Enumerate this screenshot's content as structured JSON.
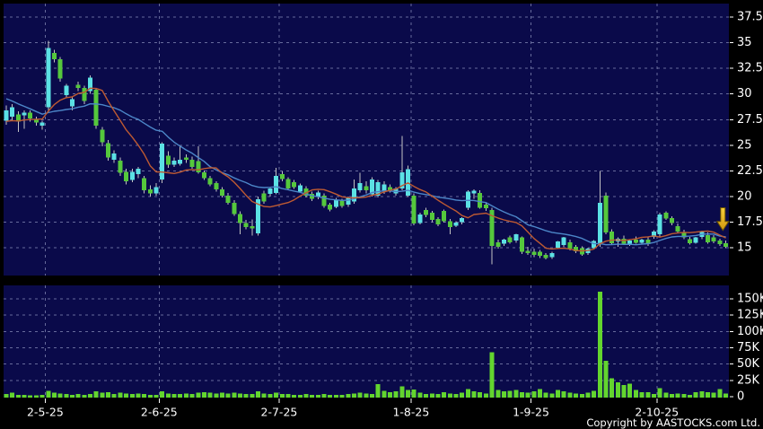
{
  "copyright": "Copyright by AASTOCKS.com Ltd.",
  "chart_data": {
    "type": "candlestick",
    "title": "",
    "legend_position": "none",
    "grid": true,
    "panels": [
      "price",
      "volume"
    ],
    "price_axis": {
      "side": "right",
      "min": 15,
      "max": 37.5,
      "step": 2.5,
      "tick_values": [
        37.5,
        35,
        32.5,
        30,
        27.5,
        25,
        22.5,
        20,
        17.5,
        15
      ],
      "tick_labels": [
        "37.5",
        "35",
        "32.5",
        "30",
        "27.5",
        "25",
        "22.5",
        "20",
        "17.5",
        "15"
      ]
    },
    "volume_axis": {
      "side": "right",
      "min": 0,
      "max": 150,
      "unit": "K",
      "tick_values": [
        150,
        125,
        100,
        75,
        50,
        25,
        0
      ],
      "tick_labels": [
        "150K",
        "125K",
        "100K",
        "75K",
        "50K",
        "25K",
        "0"
      ]
    },
    "months": [
      {
        "label": "2-5-25",
        "start_index": 7
      },
      {
        "label": "2-6-25",
        "start_index": 26
      },
      {
        "label": "2-7-25",
        "start_index": 46
      },
      {
        "label": "1-8-25",
        "start_index": 68
      },
      {
        "label": "1-9-25",
        "start_index": 88
      },
      {
        "label": "2-10-25",
        "start_index": 109
      }
    ],
    "ma": {
      "short_period": 10,
      "long_period": 20
    },
    "pre_closes": [
      33.5,
      33.2,
      33.0,
      32.8,
      32.6,
      32.4,
      32.2,
      31.6,
      30.8,
      30.0,
      28.8,
      28.0,
      27.6,
      27.3,
      27.1,
      27.0,
      26.9,
      26.9,
      27.0,
      27.1
    ],
    "candles_format": [
      "open",
      "high",
      "low",
      "close",
      "volume_K"
    ],
    "candles": [
      [
        27.4,
        28.9,
        27.0,
        28.4,
        4
      ],
      [
        27.8,
        29.0,
        27.4,
        28.7,
        6
      ],
      [
        28.0,
        28.3,
        26.3,
        27.3,
        3
      ],
      [
        27.9,
        28.4,
        26.6,
        28.2,
        3
      ],
      [
        28.2,
        28.4,
        27.3,
        27.6,
        2
      ],
      [
        27.5,
        27.8,
        26.9,
        27.2,
        2
      ],
      [
        26.9,
        27.4,
        26.5,
        27.2,
        3
      ],
      [
        28.7,
        35.2,
        28.2,
        34.5,
        9
      ],
      [
        34.0,
        34.3,
        33.1,
        33.4,
        6
      ],
      [
        33.4,
        33.6,
        31.2,
        31.5,
        5
      ],
      [
        29.9,
        31.0,
        29.6,
        30.8,
        4
      ],
      [
        28.8,
        29.7,
        28.4,
        29.5,
        3
      ],
      [
        30.9,
        31.2,
        30.3,
        30.6,
        4
      ],
      [
        30.6,
        30.8,
        29.0,
        29.3,
        3
      ],
      [
        30.3,
        31.8,
        30.0,
        31.6,
        4
      ],
      [
        30.4,
        30.6,
        26.6,
        26.9,
        8
      ],
      [
        26.5,
        26.8,
        24.9,
        25.3,
        6
      ],
      [
        25.2,
        25.5,
        23.5,
        23.8,
        7
      ],
      [
        23.6,
        24.5,
        23.3,
        24.2,
        4
      ],
      [
        23.5,
        23.8,
        22.0,
        22.3,
        6
      ],
      [
        22.4,
        22.7,
        21.2,
        21.5,
        5
      ],
      [
        21.6,
        22.7,
        21.4,
        22.4,
        4
      ],
      [
        22.2,
        22.9,
        21.8,
        22.7,
        5
      ],
      [
        21.8,
        22.0,
        20.3,
        20.6,
        4
      ],
      [
        20.7,
        21.1,
        20.0,
        20.3,
        3
      ],
      [
        20.3,
        21.3,
        20.1,
        20.9,
        3
      ],
      [
        21.65,
        25.3,
        21.3,
        25.15,
        8
      ],
      [
        24.0,
        24.4,
        22.8,
        23.1,
        5
      ],
      [
        23.1,
        23.8,
        22.9,
        23.5,
        4
      ],
      [
        23.2,
        25.0,
        23.0,
        23.6,
        4
      ],
      [
        23.8,
        24.1,
        23.3,
        23.6,
        5
      ],
      [
        23.6,
        23.9,
        22.7,
        22.9,
        4
      ],
      [
        23.45,
        24.9,
        22.25,
        22.35,
        6
      ],
      [
        22.35,
        22.55,
        21.6,
        21.8,
        7
      ],
      [
        21.8,
        22.0,
        21.0,
        21.2,
        6
      ],
      [
        21.3,
        21.5,
        20.5,
        20.7,
        5
      ],
      [
        20.7,
        20.9,
        19.9,
        20.1,
        6
      ],
      [
        20.1,
        20.35,
        19.2,
        19.4,
        5
      ],
      [
        19.4,
        19.65,
        18.1,
        18.3,
        6
      ],
      [
        18.3,
        18.55,
        16.3,
        17.4,
        5
      ],
      [
        17.4,
        17.7,
        16.8,
        17.0,
        4
      ],
      [
        17.1,
        17.75,
        16.2,
        16.9,
        4
      ],
      [
        16.4,
        20.0,
        16.2,
        19.75,
        8
      ],
      [
        20.3,
        20.55,
        19.3,
        19.5,
        5
      ],
      [
        20.25,
        20.85,
        20.0,
        20.8,
        4
      ],
      [
        20.35,
        22.8,
        20.2,
        22.0,
        6
      ],
      [
        22.2,
        22.45,
        21.5,
        21.7,
        4
      ],
      [
        21.7,
        21.9,
        20.6,
        20.8,
        4
      ],
      [
        21.4,
        21.6,
        20.75,
        20.9,
        3
      ],
      [
        20.5,
        21.25,
        20.35,
        21.1,
        3
      ],
      [
        20.8,
        21.0,
        19.9,
        20.1,
        4
      ],
      [
        20.25,
        20.5,
        19.55,
        19.8,
        3
      ],
      [
        19.95,
        20.55,
        19.75,
        20.4,
        3
      ],
      [
        20.1,
        20.3,
        18.9,
        19.1,
        4
      ],
      [
        19.2,
        19.4,
        18.55,
        18.75,
        3
      ],
      [
        19.0,
        19.85,
        18.85,
        19.7,
        3
      ],
      [
        19.6,
        19.8,
        18.9,
        19.1,
        3
      ],
      [
        19.2,
        20.0,
        19.0,
        19.9,
        4
      ],
      [
        19.5,
        21.65,
        19.3,
        20.8,
        5
      ],
      [
        20.6,
        22.3,
        20.4,
        21.3,
        6
      ],
      [
        21.0,
        21.5,
        20.3,
        20.6,
        5
      ],
      [
        20.2,
        21.9,
        20.0,
        21.65,
        4
      ],
      [
        20.1,
        21.6,
        19.9,
        21.4,
        19
      ],
      [
        20.5,
        21.5,
        20.25,
        21.2,
        9
      ],
      [
        20.9,
        21.2,
        20.4,
        20.55,
        7
      ],
      [
        20.3,
        20.9,
        20.1,
        20.8,
        8
      ],
      [
        20.8,
        25.9,
        20.6,
        22.35,
        16
      ],
      [
        20.1,
        23.0,
        19.95,
        22.65,
        10
      ],
      [
        20.1,
        20.3,
        17.2,
        17.35,
        11
      ],
      [
        17.4,
        18.4,
        17.3,
        18.25,
        6
      ],
      [
        18.7,
        18.9,
        18.0,
        18.2,
        4
      ],
      [
        18.4,
        18.6,
        17.5,
        17.7,
        5
      ],
      [
        17.8,
        18.0,
        17.1,
        17.3,
        4
      ],
      [
        18.6,
        18.75,
        17.45,
        17.6,
        7
      ],
      [
        17.6,
        17.8,
        16.3,
        17.0,
        5
      ],
      [
        17.15,
        17.6,
        17.0,
        17.45,
        4
      ],
      [
        17.5,
        18.0,
        17.3,
        17.9,
        6
      ],
      [
        18.9,
        20.6,
        18.7,
        20.5,
        12
      ],
      [
        20.3,
        20.7,
        19.8,
        20.55,
        8
      ],
      [
        20.35,
        20.6,
        18.8,
        18.9,
        7
      ],
      [
        19.2,
        19.4,
        18.6,
        18.85,
        5
      ],
      [
        18.7,
        18.9,
        13.4,
        15.2,
        68
      ],
      [
        15.55,
        15.8,
        14.9,
        15.1,
        10
      ],
      [
        15.4,
        15.9,
        15.2,
        15.8,
        8
      ],
      [
        16.0,
        16.2,
        15.4,
        15.55,
        9
      ],
      [
        15.7,
        16.35,
        15.5,
        16.3,
        10
      ],
      [
        16.0,
        16.1,
        14.4,
        14.6,
        7
      ],
      [
        14.7,
        15.1,
        14.3,
        14.5,
        6
      ],
      [
        14.6,
        14.9,
        14.1,
        14.3,
        8
      ],
      [
        14.6,
        14.8,
        14.0,
        14.2,
        12
      ],
      [
        14.3,
        14.5,
        13.85,
        14.0,
        6
      ],
      [
        14.1,
        14.6,
        13.9,
        14.5,
        5
      ],
      [
        15.0,
        15.65,
        14.9,
        15.6,
        10
      ],
      [
        15.25,
        16.05,
        15.1,
        16.0,
        8
      ],
      [
        15.55,
        15.8,
        14.75,
        14.9,
        6
      ],
      [
        15.1,
        15.25,
        14.5,
        14.65,
        5
      ],
      [
        14.95,
        15.15,
        14.2,
        14.35,
        4
      ],
      [
        14.5,
        15.0,
        14.3,
        14.9,
        6
      ],
      [
        14.95,
        15.75,
        14.85,
        15.65,
        9
      ],
      [
        15.3,
        22.5,
        15.1,
        19.4,
        161
      ],
      [
        20.1,
        20.4,
        16.3,
        16.5,
        55
      ],
      [
        16.6,
        16.8,
        15.3,
        15.45,
        28
      ],
      [
        15.6,
        16.0,
        15.1,
        15.9,
        22
      ],
      [
        15.9,
        16.2,
        15.3,
        15.4,
        18
      ],
      [
        15.4,
        15.8,
        15.2,
        15.7,
        20
      ],
      [
        15.8,
        16.1,
        15.4,
        15.5,
        10
      ],
      [
        15.5,
        15.9,
        15.3,
        15.8,
        7
      ],
      [
        15.8,
        16.0,
        15.2,
        15.35,
        7
      ],
      [
        16.05,
        16.7,
        15.9,
        16.6,
        4
      ],
      [
        16.3,
        18.4,
        16.1,
        18.25,
        13
      ],
      [
        18.4,
        18.55,
        17.7,
        17.85,
        6
      ],
      [
        17.9,
        18.05,
        17.2,
        17.4,
        4
      ],
      [
        17.1,
        17.35,
        16.45,
        16.6,
        5
      ],
      [
        16.55,
        16.75,
        15.85,
        16.0,
        4
      ],
      [
        15.85,
        16.05,
        15.3,
        15.45,
        3
      ],
      [
        15.5,
        16.05,
        15.4,
        16.0,
        7
      ],
      [
        16.05,
        16.65,
        15.85,
        16.55,
        8
      ],
      [
        16.25,
        16.5,
        15.4,
        15.55,
        7
      ],
      [
        16.0,
        16.25,
        15.45,
        15.6,
        6
      ],
      [
        15.7,
        15.9,
        15.2,
        15.35,
        12
      ],
      [
        15.45,
        15.7,
        14.95,
        15.1,
        5
      ]
    ],
    "marker": {
      "shape": "down-arrow",
      "candle_index": 119.5,
      "top_price": 18.9,
      "tip_price": 16.7
    },
    "colors": {
      "background": "#000000",
      "panel": "#0A0A4A",
      "grid": "#9AA0C8",
      "up_candle": "#5BE1E4",
      "down_candle": "#55C83C",
      "wick": "#C4C4C4",
      "volume_bar": "#63D52E",
      "ma_short": "#BE5A32",
      "ma_long": "#4C86C8",
      "text": "#FFFFFF",
      "arrow_fill_top": "#F7CF3B",
      "arrow_fill_bottom": "#D2990F",
      "arrow_stroke": "#6E5600"
    }
  }
}
